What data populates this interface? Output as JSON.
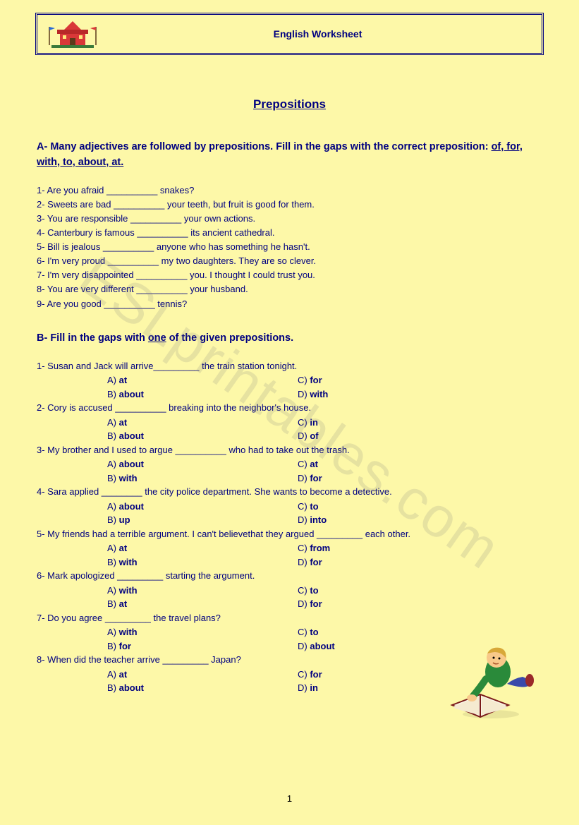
{
  "colors": {
    "page_bg": "#fdf8a8",
    "ink": "#000080",
    "border": "#000080",
    "watermark": "rgba(128,128,128,0.18)"
  },
  "header": {
    "title": "English Worksheet"
  },
  "main_title": "Prepositions",
  "sectionA": {
    "heading_prefix": "A- Many adjectives are followed by prepositions. Fill in the gaps with the correct preposition: ",
    "heading_underline": "of, for, with, to, about, at.",
    "indent_prefix": "     ",
    "items": [
      "1- Are you afraid __________ snakes?",
      "2- Sweets are bad __________ your teeth, but fruit is good for them.",
      "3- You are responsible __________  your own actions.",
      "4- Canterbury is famous __________ its ancient cathedral.",
      "5- Bill is jealous __________  anyone who has something he hasn't.",
      "6- I'm very proud __________ my two daughters. They are so clever.",
      "7- I'm very disappointed __________ you. I thought I could trust you.",
      "8- You are very different __________ your husband.",
      "9- Are you good __________  tennis?"
    ]
  },
  "sectionB": {
    "heading_prefix": "B- Fill in the gaps with ",
    "heading_underline": "one",
    "heading_suffix": " of the given prepositions.",
    "questions": [
      {
        "text": "1- Susan and Jack will arrive_________ the train station tonight.",
        "opts": {
          "A": "at",
          "B": "about",
          "C": "for",
          "D": "with"
        }
      },
      {
        "text": "2- Cory is accused __________  breaking into the neighbor's house.",
        "opts": {
          "A": "at",
          "B": "about",
          "C": "in",
          "D": "of"
        }
      },
      {
        "text": "3- My brother and I used to argue __________ who had to take out the trash.",
        "opts": {
          "A": "about",
          "B": "with",
          "C": "at",
          "D": "for"
        }
      },
      {
        "text": "4- Sara applied ________ the city police department. She wants to become a detective.",
        "opts": {
          "A": "about",
          "B": "up",
          "C": "to",
          "D": "into"
        }
      },
      {
        "text": "5- My friends had a terrible argument. I can't believethat they argued _________ each other.",
        "opts": {
          "A": "at",
          "B": "with",
          "C": "from",
          "D": "for"
        }
      },
      {
        "text": "6- Mark apologized _________ starting the argument.",
        "opts": {
          "A": "with",
          "B": "at",
          "C": "to",
          "D": "for"
        }
      },
      {
        "text": "7-  Do you agree _________  the travel plans?",
        "opts": {
          "A": "with",
          "B": "for",
          "C": "to",
          "D": "about"
        }
      },
      {
        "text": "8- When did the teacher arrive _________ Japan?",
        "opts": {
          "A": "at",
          "B": "about",
          "C": "for",
          "D": "in"
        }
      }
    ]
  },
  "watermark": "ESLprintables.com",
  "page_number": "1"
}
